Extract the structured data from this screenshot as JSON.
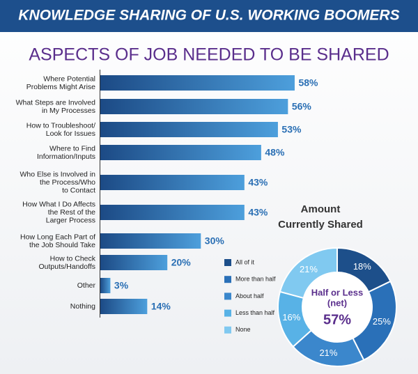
{
  "banner": {
    "title": "KNOWLEDGE SHARING OF U.S. WORKING BOOMERS"
  },
  "chart_data": [
    {
      "type": "bar",
      "title": "ASPECTS OF JOB NEEDED TO BE SHARED",
      "categories": [
        "Where Potential\nProblems Might Arise",
        "What Steps are Involved\nin My Processes",
        "How to Troubleshoot/\nLook for Issues",
        "Where to Find\nInformation/Inputs",
        "Who Else is Involved in\nthe Process/Who\nto Contact",
        "How What I Do Affects\nthe Rest of the\nLarger Process",
        "How Long Each Part of\nthe Job Should Take",
        "How to Check\nOutputs/Handoffs",
        "Other",
        "Nothing"
      ],
      "values": [
        58,
        56,
        53,
        48,
        43,
        43,
        30,
        20,
        3,
        14
      ],
      "value_labels": [
        "58%",
        "56%",
        "53%",
        "48%",
        "43%",
        "43%",
        "30%",
        "20%",
        "3%",
        "14%"
      ],
      "colors": [
        "#1c4a85",
        "#4d9fdc"
      ]
    },
    {
      "type": "pie",
      "title": "Amount\nCurrently Shared",
      "categories": [
        "All of it",
        "More than half",
        "About half",
        "Less than half",
        "None"
      ],
      "values": [
        18,
        25,
        21,
        16,
        21
      ],
      "value_labels": [
        "18%",
        "25%",
        "21%",
        "16%",
        "21%"
      ],
      "colors": [
        "#1d4f8a",
        "#2a70b8",
        "#3b87cc",
        "#58b2e6",
        "#80c9f0"
      ],
      "center_text": [
        "Half or Less",
        "(net)"
      ],
      "center_value": 57,
      "center_value_label": "57%"
    }
  ]
}
